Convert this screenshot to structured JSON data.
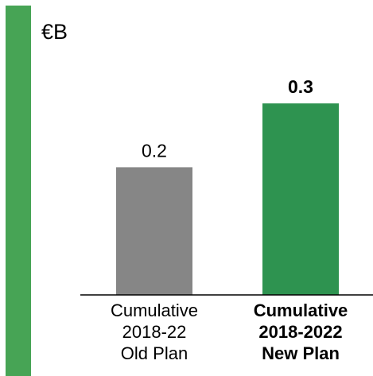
{
  "chart_data": {
    "type": "bar",
    "unit_label": "€B",
    "categories": [
      [
        "Cumulative",
        "2018-22",
        "Old Plan"
      ],
      [
        "Cumulative",
        "2018-2022",
        "New Plan"
      ]
    ],
    "values": [
      0.2,
      0.3
    ],
    "value_labels": [
      "0.2",
      "0.3"
    ],
    "bar_colors": [
      "#868686",
      "#2e9350"
    ],
    "emphasis": [
      false,
      true
    ],
    "accent_bar_color": "#47a455",
    "ylim": [
      0,
      0.462
    ],
    "grid": false,
    "legend": "none"
  }
}
